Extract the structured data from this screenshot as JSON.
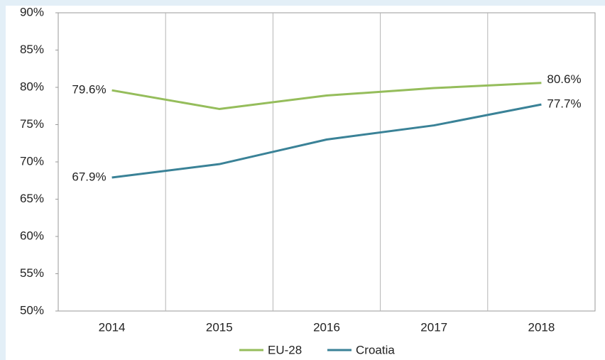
{
  "chart_data": {
    "type": "line",
    "categories": [
      "2014",
      "2015",
      "2016",
      "2017",
      "2018"
    ],
    "series": [
      {
        "name": "EU-28",
        "color": "#95bd5b",
        "values": [
          79.6,
          77.1,
          78.9,
          79.9,
          80.6
        ],
        "value_labels": [
          "79.6%",
          null,
          null,
          null,
          "80.6%"
        ]
      },
      {
        "name": "Croatia",
        "color": "#3a8297",
        "values": [
          67.9,
          69.7,
          73.0,
          74.9,
          77.7
        ],
        "value_labels": [
          "67.9%",
          null,
          null,
          null,
          "77.7%"
        ]
      }
    ],
    "ylim": [
      50,
      90
    ],
    "yticks": [
      {
        "value": 50,
        "label": "50%"
      },
      {
        "value": 55,
        "label": "55%"
      },
      {
        "value": 60,
        "label": "60%"
      },
      {
        "value": 65,
        "label": "65%"
      },
      {
        "value": 70,
        "label": "70%"
      },
      {
        "value": 75,
        "label": "75%"
      },
      {
        "value": 80,
        "label": "80%"
      },
      {
        "value": 85,
        "label": "85%"
      },
      {
        "value": 90,
        "label": "90%"
      }
    ],
    "grid": false,
    "legend": "bottom"
  }
}
